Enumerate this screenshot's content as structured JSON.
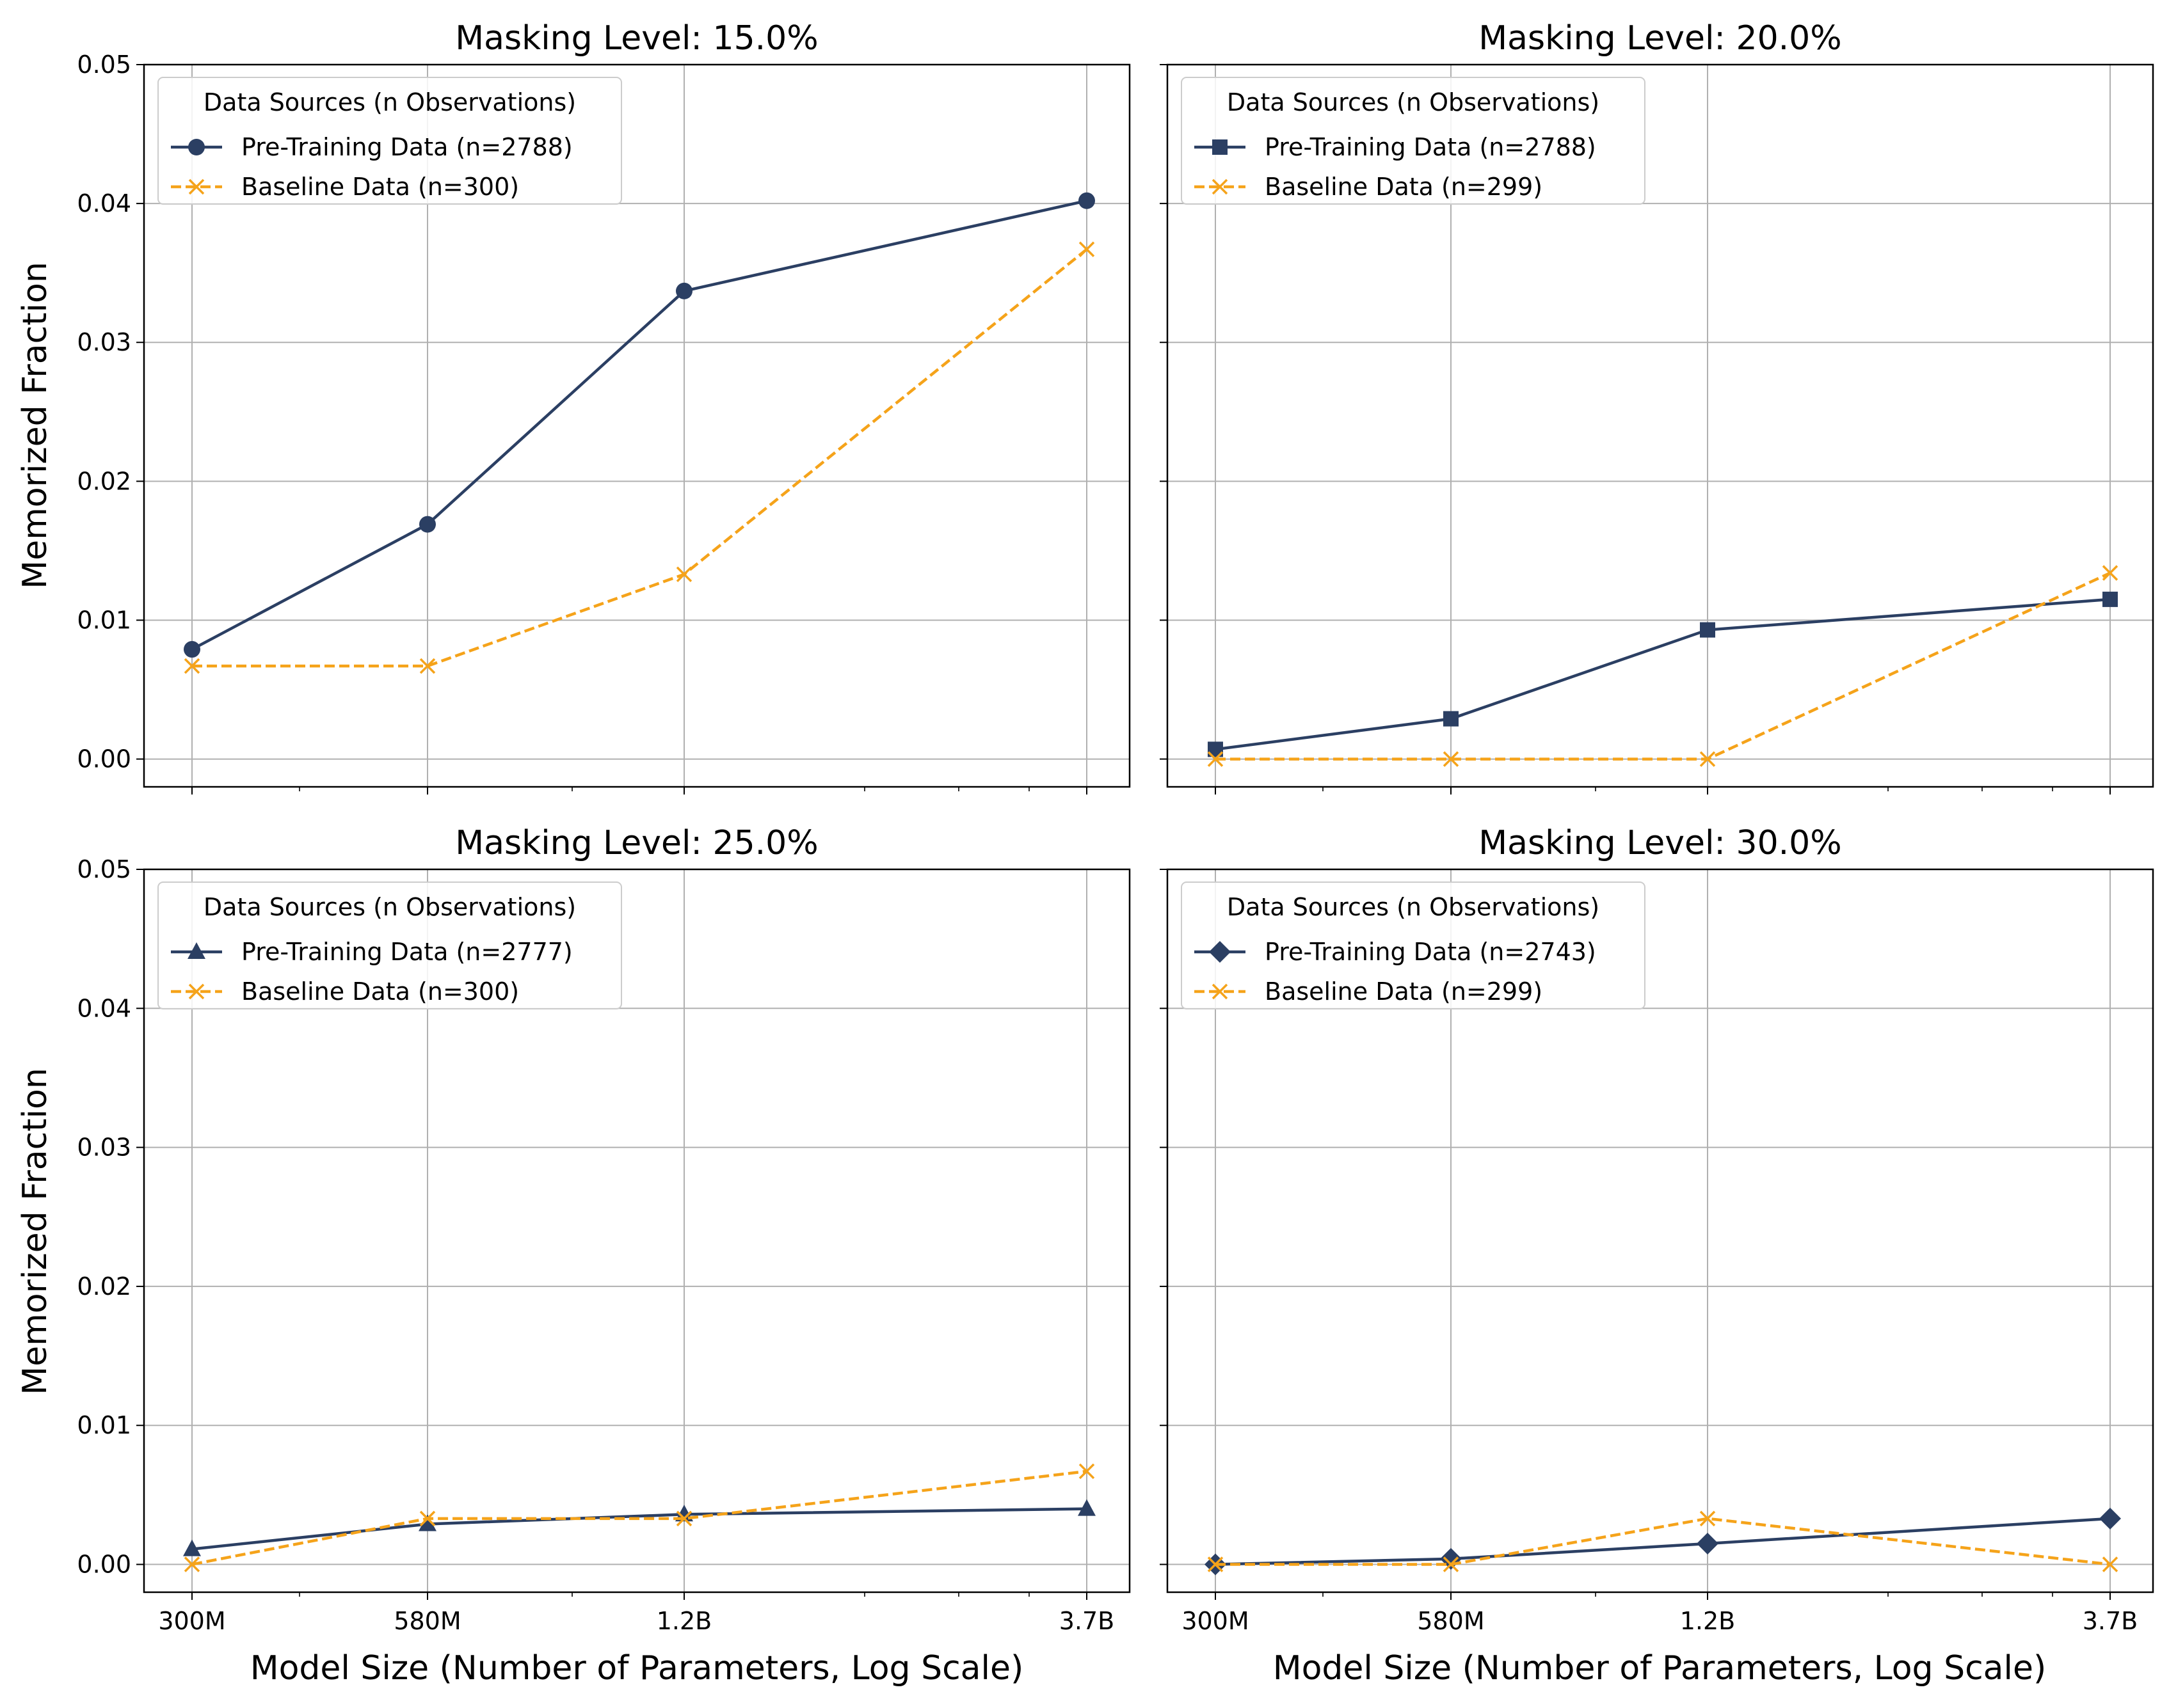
{
  "figure": {
    "ylabel": "Memorized Fraction",
    "xlabel": "Model Size (Number of Parameters, Log Scale)",
    "legend_title": "Data Sources (n Observations)"
  },
  "colors": {
    "pretraining": "#2b3f63",
    "baseline": "#f5a31a",
    "grid": "#b0b0b0"
  },
  "chart_data": [
    {
      "type": "line",
      "title": "Masking Level: 15.0%",
      "x": [
        300000000,
        580000000,
        1200000000,
        3700000000
      ],
      "xticklabels": [
        "300M",
        "580M",
        "1.2B",
        "3.7B"
      ],
      "xscale": "log",
      "ylim": [
        -0.002,
        0.05
      ],
      "yticks": [
        "0.00",
        "0.01",
        "0.02",
        "0.03",
        "0.04",
        "0.05"
      ],
      "grid": true,
      "legend_position": "top-left",
      "series": [
        {
          "name": "Pre-Training Data (n=2788)",
          "marker": "circle",
          "style": "solid",
          "values": [
            0.0079,
            0.0169,
            0.0337,
            0.0402
          ]
        },
        {
          "name": "Baseline Data (n=300)",
          "marker": "x",
          "style": "dashed",
          "values": [
            0.0067,
            0.0067,
            0.0133,
            0.0367
          ]
        }
      ]
    },
    {
      "type": "line",
      "title": "Masking Level: 20.0%",
      "x": [
        300000000,
        580000000,
        1200000000,
        3700000000
      ],
      "xticklabels": [
        "300M",
        "580M",
        "1.2B",
        "3.7B"
      ],
      "xscale": "log",
      "ylim": [
        -0.002,
        0.05
      ],
      "grid": true,
      "legend_position": "top-left",
      "series": [
        {
          "name": "Pre-Training Data (n=2788)",
          "marker": "square",
          "style": "solid",
          "values": [
            0.0007,
            0.0029,
            0.0093,
            0.0115
          ]
        },
        {
          "name": "Baseline Data (n=299)",
          "marker": "x",
          "style": "dashed",
          "values": [
            0.0,
            0.0,
            0.0,
            0.0134
          ]
        }
      ]
    },
    {
      "type": "line",
      "title": "Masking Level: 25.0%",
      "x": [
        300000000,
        580000000,
        1200000000,
        3700000000
      ],
      "xticklabels": [
        "300M",
        "580M",
        "1.2B",
        "3.7B"
      ],
      "xscale": "log",
      "ylim": [
        -0.002,
        0.05
      ],
      "yticks": [
        "0.00",
        "0.01",
        "0.02",
        "0.03",
        "0.04",
        "0.05"
      ],
      "grid": true,
      "legend_position": "top-left",
      "series": [
        {
          "name": "Pre-Training Data (n=2777)",
          "marker": "triangle",
          "style": "solid",
          "values": [
            0.0011,
            0.0029,
            0.0036,
            0.004
          ]
        },
        {
          "name": "Baseline Data (n=300)",
          "marker": "x",
          "style": "dashed",
          "values": [
            0.0,
            0.0033,
            0.0033,
            0.0067
          ]
        }
      ]
    },
    {
      "type": "line",
      "title": "Masking Level: 30.0%",
      "x": [
        300000000,
        580000000,
        1200000000,
        3700000000
      ],
      "xticklabels": [
        "300M",
        "580M",
        "1.2B",
        "3.7B"
      ],
      "xscale": "log",
      "ylim": [
        -0.002,
        0.05
      ],
      "grid": true,
      "legend_position": "top-left",
      "series": [
        {
          "name": "Pre-Training Data (n=2743)",
          "marker": "diamond",
          "style": "solid",
          "values": [
            0.0,
            0.0004,
            0.0015,
            0.0033
          ]
        },
        {
          "name": "Baseline Data (n=299)",
          "marker": "x",
          "style": "dashed",
          "values": [
            0.0,
            0.0,
            0.0033,
            0.0
          ]
        }
      ]
    }
  ]
}
